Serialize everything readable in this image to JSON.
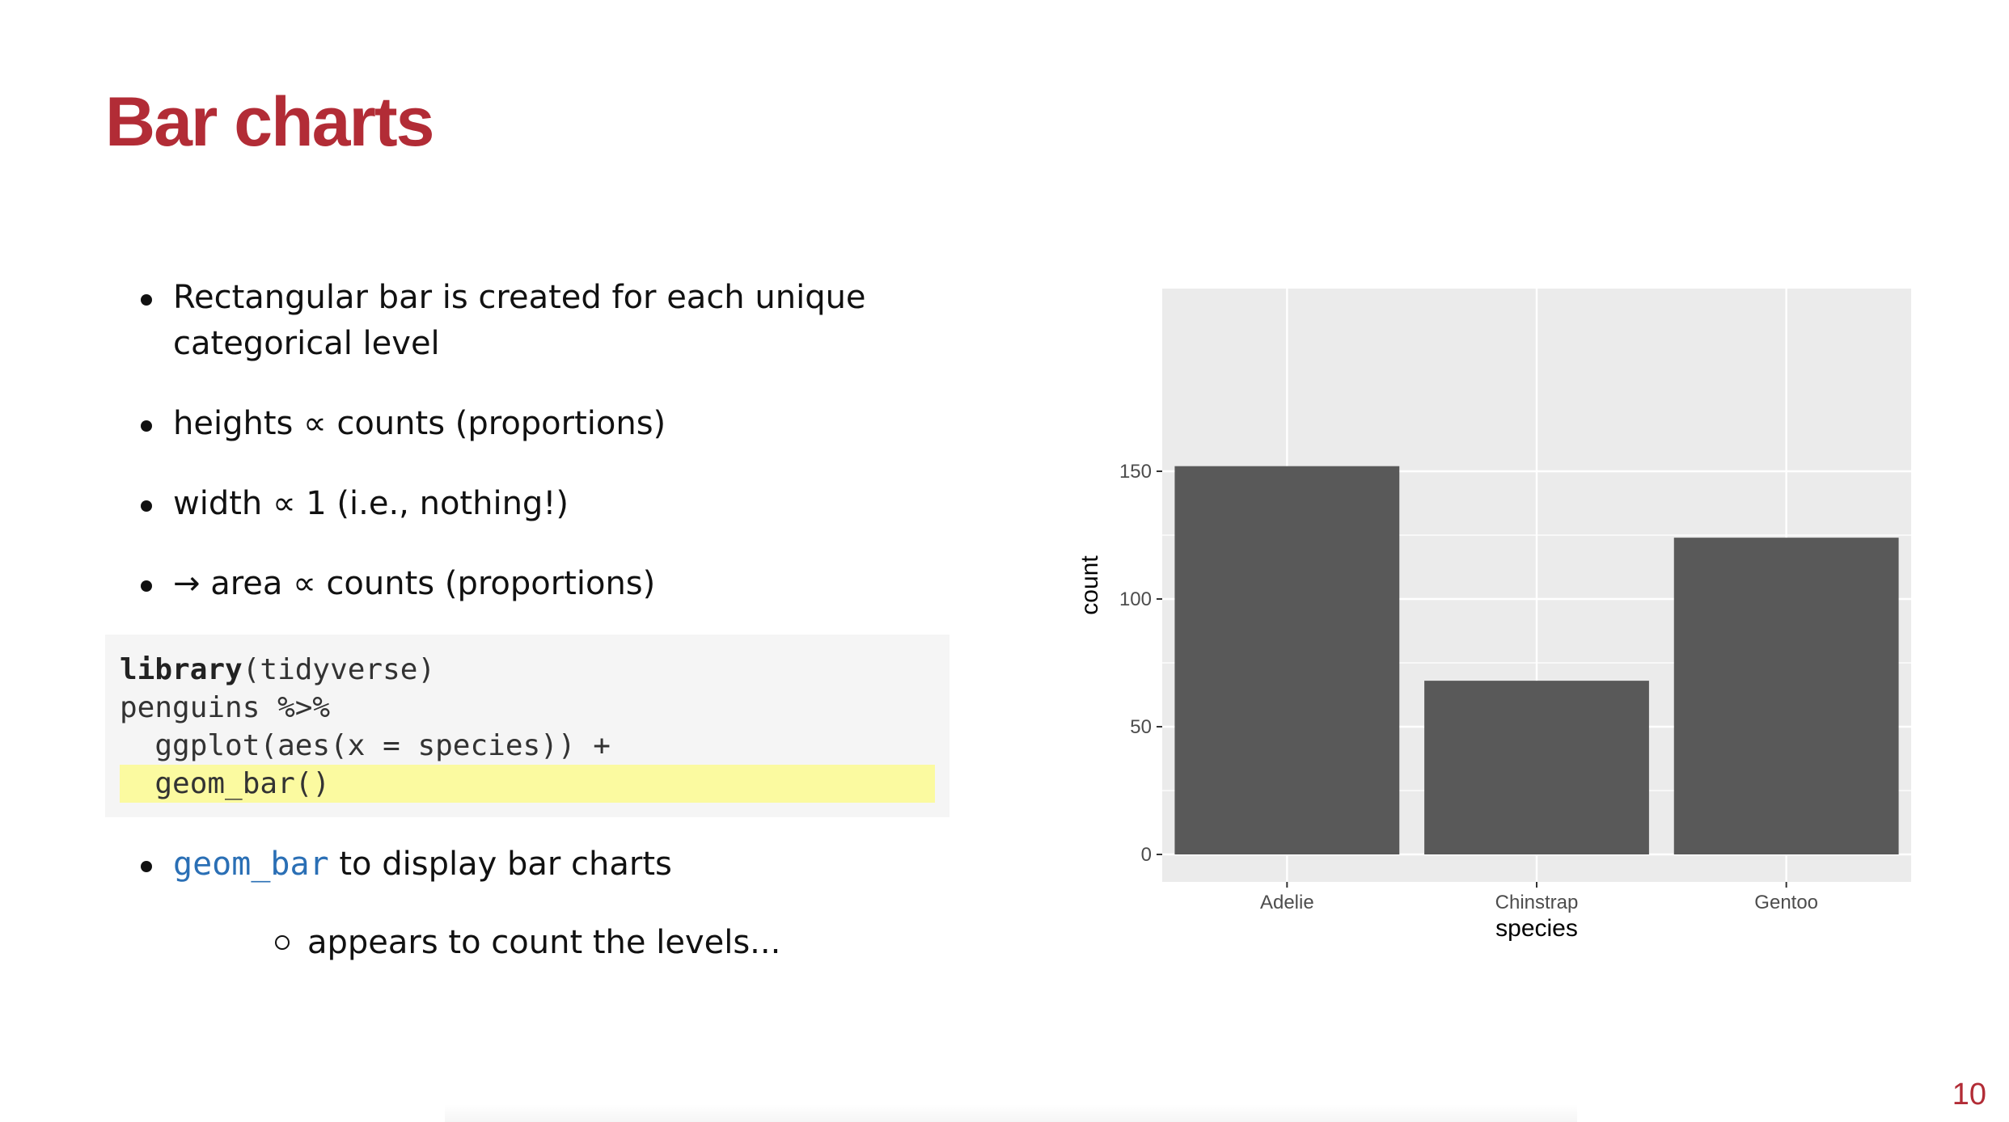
{
  "title": "Bar charts",
  "bullets": [
    "Rectangular bar is created for each unique categorical level",
    "heights ∝ counts (proportions)",
    "width ∝ 1 (i.e., nothing!)",
    "→ area ∝ counts (proportions)"
  ],
  "code": {
    "line1_keyword": "library",
    "line1_rest": "(tidyverse)",
    "line2": "penguins %>%",
    "line3": "  ggplot(aes(x = species)) +",
    "line4": "  geom_bar()"
  },
  "bullet_geom": {
    "code_word": "geom_bar",
    "rest": " to display bar charts"
  },
  "sub_bullet": "appears to count the levels...",
  "page_number": "10",
  "chart_data": {
    "type": "bar",
    "categories": [
      "Adelie",
      "Chinstrap",
      "Gentoo"
    ],
    "values": [
      152,
      68,
      124
    ],
    "xlabel": "species",
    "ylabel": "count",
    "ylim": [
      0,
      158
    ],
    "yticks": [
      0,
      50,
      100,
      150
    ],
    "grid": true,
    "bar_color": "#595959",
    "panel_color": "#ebebeb"
  },
  "colors": {
    "title": "#b22c36",
    "highlight": "#fbfaa0",
    "code_background": "#f5f5f5",
    "code_word": "#2a6fb5"
  }
}
